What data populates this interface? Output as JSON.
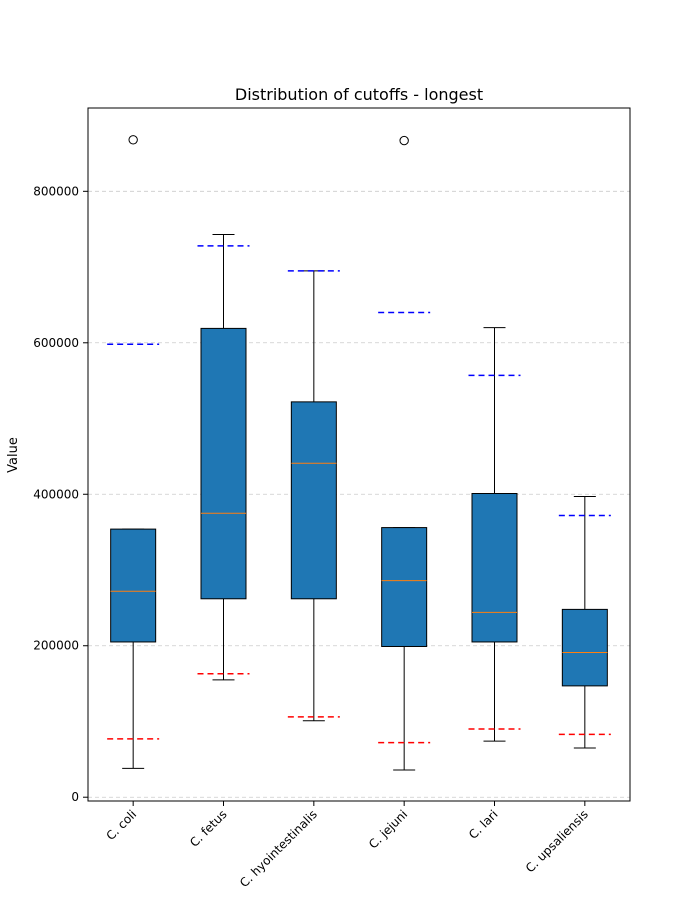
{
  "chart_data": {
    "type": "box",
    "title": "Distribution of cutoffs - longest",
    "xlabel": "",
    "ylabel": "Value",
    "ylim": [
      -5000,
      910000
    ],
    "yticks": [
      0,
      200000,
      400000,
      600000,
      800000
    ],
    "ytick_labels": [
      "0",
      "200000",
      "400000",
      "600000",
      "800000"
    ],
    "grid": "y-dashed",
    "box_color": "#1f77b4",
    "median_color": "#ff7f0e",
    "upper_line_color": "#0000ff",
    "lower_line_color": "#ff0000",
    "categories": [
      "C. coli",
      "C. fetus",
      "C. hyointestinalis",
      "C. jejuni",
      "C. lari",
      "C. upsaliensis"
    ],
    "boxes": [
      {
        "category": "C. coli",
        "whisker_low": 38000,
        "q1": 205000,
        "median": 272000,
        "q3": 354000,
        "whisker_high": 354000,
        "outliers": [
          868000
        ],
        "upper_cutoff": 598000,
        "lower_cutoff": 77000
      },
      {
        "category": "C. fetus",
        "whisker_low": 155000,
        "q1": 262000,
        "median": 375000,
        "q3": 619000,
        "whisker_high": 743000,
        "outliers": [],
        "upper_cutoff": 728000,
        "lower_cutoff": 163000
      },
      {
        "category": "C. hyointestinalis",
        "whisker_low": 101000,
        "q1": 262000,
        "median": 441000,
        "q3": 522000,
        "whisker_high": 695000,
        "outliers": [],
        "upper_cutoff": 695000,
        "lower_cutoff": 106000
      },
      {
        "category": "C. jejuni",
        "whisker_low": 36000,
        "q1": 199000,
        "median": 286000,
        "q3": 356000,
        "whisker_high": 356000,
        "outliers": [
          867000
        ],
        "upper_cutoff": 640000,
        "lower_cutoff": 72000
      },
      {
        "category": "C. lari",
        "whisker_low": 74000,
        "q1": 205000,
        "median": 244000,
        "q3": 401000,
        "whisker_high": 620000,
        "outliers": [],
        "upper_cutoff": 557000,
        "lower_cutoff": 90000
      },
      {
        "category": "C. upsaliensis",
        "whisker_low": 65000,
        "q1": 147000,
        "median": 191000,
        "q3": 248000,
        "whisker_high": 397000,
        "outliers": [],
        "upper_cutoff": 372000,
        "lower_cutoff": 83000
      }
    ]
  }
}
